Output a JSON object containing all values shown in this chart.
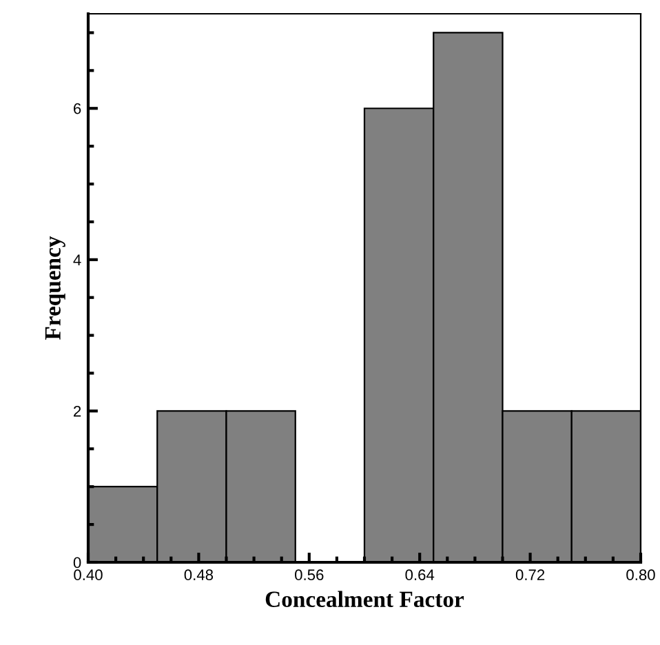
{
  "chart_data": {
    "type": "histogram",
    "xlabel": "Concealment Factor",
    "ylabel": "Frequency",
    "bins": [
      0.4,
      0.45,
      0.5,
      0.55,
      0.6,
      0.65,
      0.7,
      0.75,
      0.8
    ],
    "values": [
      1,
      2,
      2,
      0,
      6,
      7,
      2,
      2
    ],
    "color": "#808080",
    "xlim": [
      0.4,
      0.8
    ],
    "xticks": [
      {
        "value": 0.4,
        "label": "0.40"
      },
      {
        "value": 0.48,
        "label": "0.48"
      },
      {
        "value": 0.56,
        "label": "0.56"
      },
      {
        "value": 0.64,
        "label": "0.64"
      },
      {
        "value": 0.72,
        "label": "0.72"
      },
      {
        "value": 0.8,
        "label": "0.80"
      }
    ],
    "ylim": [
      0,
      7.25
    ],
    "yticks": [
      0,
      2,
      4,
      6
    ],
    "grid": false,
    "legend": false
  }
}
